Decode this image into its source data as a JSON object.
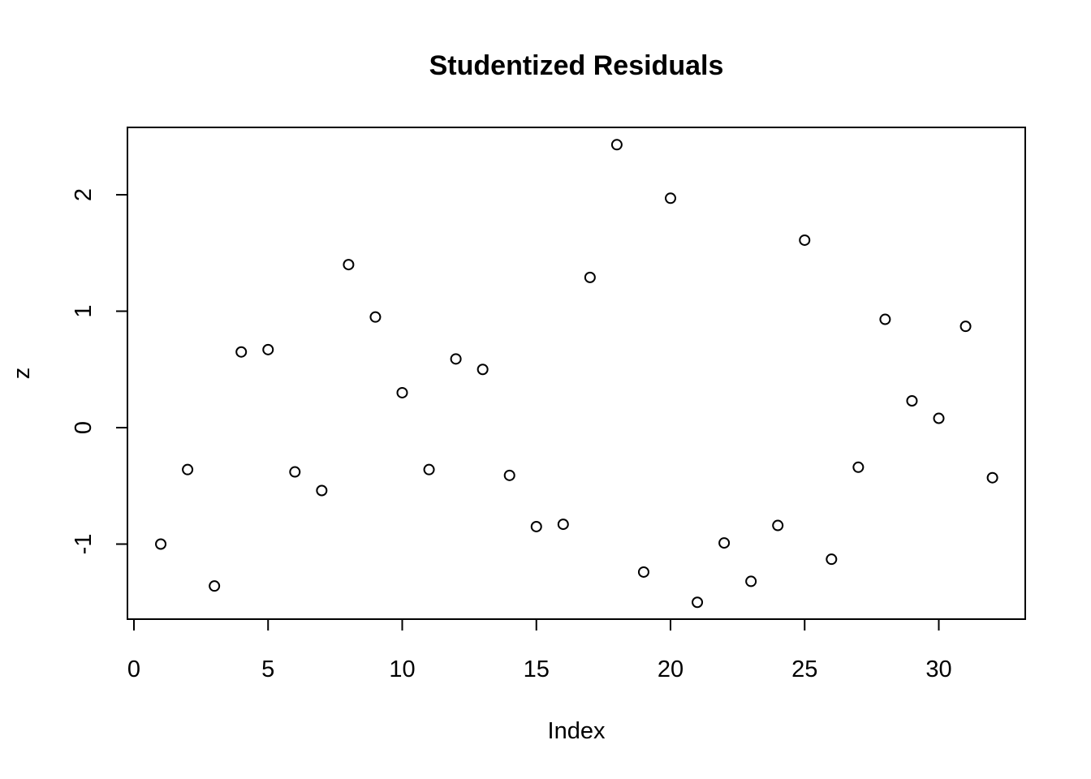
{
  "chart_data": {
    "type": "scatter",
    "title": "Studentized Residuals",
    "xlabel": "Index",
    "ylabel": "z",
    "xlim": [
      0,
      33
    ],
    "ylim": [
      -1.6,
      2.5
    ],
    "xticks": [
      0,
      5,
      10,
      15,
      20,
      25,
      30
    ],
    "yticks": [
      -1,
      0,
      1,
      2
    ],
    "grid": false,
    "legend": "none",
    "x": [
      1,
      2,
      3,
      4,
      5,
      6,
      7,
      8,
      9,
      10,
      11,
      12,
      13,
      14,
      15,
      16,
      17,
      18,
      19,
      20,
      21,
      22,
      23,
      24,
      25,
      26,
      27,
      28,
      29,
      30,
      31,
      32
    ],
    "y": [
      -1.0,
      -0.36,
      -1.36,
      0.65,
      0.67,
      -0.38,
      -0.54,
      1.4,
      0.95,
      0.3,
      -0.36,
      0.59,
      0.5,
      -0.41,
      -0.85,
      -0.83,
      1.29,
      2.43,
      -1.24,
      1.97,
      -1.5,
      -0.99,
      -1.32,
      -0.84,
      1.61,
      -1.13,
      -0.34,
      0.93,
      0.23,
      0.08,
      0.87,
      -0.43
    ]
  }
}
